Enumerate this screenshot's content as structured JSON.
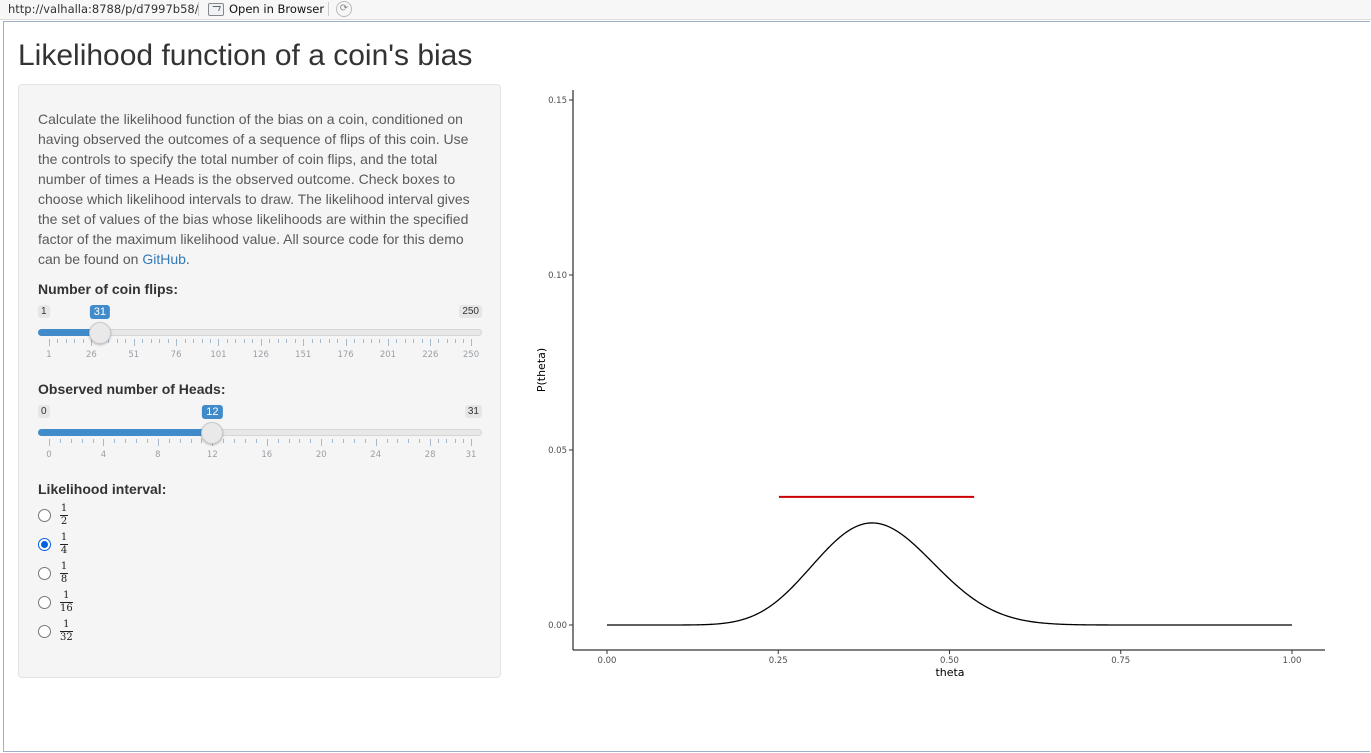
{
  "browser": {
    "url": "http://valhalla:8788/p/d7997b58/",
    "open_label": "Open in Browser"
  },
  "page": {
    "title": "Likelihood function of a coin's bias"
  },
  "sidebar": {
    "description": "Calculate the likelihood function of the bias on a coin, conditioned on having observed the outcomes of a sequence of flips of this coin. Use the controls to specify the total number of coin flips, and the total number of times a Heads is the observed outcome. Check boxes to choose which likelihood intervals to draw. The likelihood interval gives the set of values of the bias whose likelihoods are within the specified factor of the maximum likelihood value. All source code for this demo can be found on ",
    "link_text": "GitHub",
    "after_link": ".",
    "flips": {
      "label": "Number of coin flips:",
      "min": 1,
      "max": 250,
      "value": 31,
      "min_label": "1",
      "max_label": "250",
      "value_label": "31",
      "ticks": [
        "1",
        "26",
        "51",
        "76",
        "101",
        "126",
        "151",
        "176",
        "201",
        "226",
        "250"
      ]
    },
    "heads": {
      "label": "Observed number of Heads:",
      "min": 0,
      "max": 31,
      "value": 12,
      "min_label": "0",
      "max_label": "31",
      "value_label": "12",
      "ticks": [
        "0",
        "4",
        "8",
        "12",
        "16",
        "20",
        "24",
        "28",
        "31"
      ]
    },
    "interval": {
      "label": "Likelihood interval:",
      "options": [
        {
          "num": "1",
          "den": "2",
          "selected": false
        },
        {
          "num": "1",
          "den": "4",
          "selected": true
        },
        {
          "num": "1",
          "den": "8",
          "selected": false
        },
        {
          "num": "1",
          "den": "16",
          "selected": false
        },
        {
          "num": "1",
          "den": "32",
          "selected": false
        }
      ]
    }
  },
  "chart_data": {
    "type": "line",
    "xlabel": "theta",
    "ylabel": "P(theta)",
    "xlim": [
      0,
      1
    ],
    "ylim": [
      0,
      0.15
    ],
    "x_ticks": [
      "0.00",
      "0.25",
      "0.50",
      "0.75",
      "1.00"
    ],
    "y_ticks": [
      "0.00",
      "0.05",
      "0.10",
      "0.15"
    ],
    "grid": false,
    "n": 31,
    "k": 12,
    "series": [
      {
        "color": "#000000",
        "kind": "binomial-likelihood"
      }
    ],
    "interval": {
      "factor": 0.25,
      "color": "#cc0000",
      "x_range": [
        0.251,
        0.536
      ],
      "y": 0.0366
    }
  }
}
